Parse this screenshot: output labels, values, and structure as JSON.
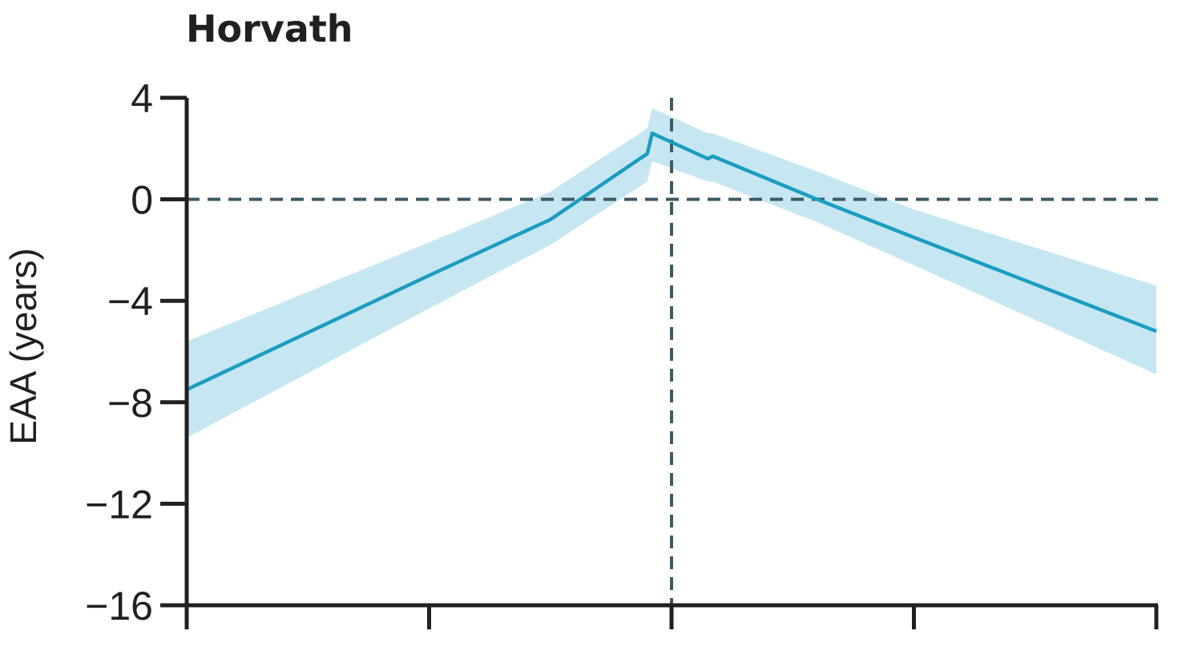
{
  "chart_data": {
    "type": "line",
    "title": "Horvath",
    "xlabel": "",
    "ylabel": "EAA (years)",
    "ylim": [
      -16,
      4
    ],
    "yticks": [
      4,
      0,
      -4,
      -8,
      -12,
      -16
    ],
    "ytick_labels": [
      "4",
      "0",
      "−4",
      "−8",
      "−12",
      "−16"
    ],
    "xlim": [
      0,
      4
    ],
    "xticks": [
      0,
      1,
      2,
      3,
      4
    ],
    "grid": false,
    "reference_lines": {
      "horizontal_y": 0,
      "vertical_x": 2
    },
    "series": [
      {
        "x": [
          0,
          1.0,
          1.5,
          1.9,
          1.92,
          2.15,
          2.17,
          2.6,
          3.0,
          4.0
        ],
        "y": [
          -7.5,
          -3.0,
          -0.8,
          1.8,
          2.6,
          1.6,
          1.7,
          0.0,
          -1.5,
          -5.2
        ],
        "ci_lower": [
          -9.4,
          -4.3,
          -1.8,
          0.7,
          1.5,
          0.7,
          0.7,
          -0.9,
          -2.6,
          -6.9
        ],
        "ci_upper": [
          -5.6,
          -1.7,
          0.3,
          2.8,
          3.6,
          2.6,
          2.6,
          1.1,
          -0.4,
          -3.4
        ]
      }
    ]
  },
  "colors": {
    "line": "#1b9dc2",
    "band": "#c6e7f2",
    "reference": "#3e5a64",
    "axis": "#231f20"
  }
}
